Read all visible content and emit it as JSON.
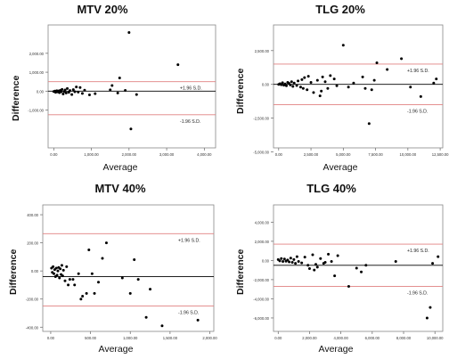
{
  "chart_data": [
    {
      "type": "scatter",
      "title": "MTV 20%",
      "xlabel": "Average",
      "ylabel": "Difference",
      "xlim": [
        -150,
        4300
      ],
      "ylim": [
        -3000,
        3500
      ],
      "xticks": [
        0,
        1000,
        2000,
        3000,
        4000
      ],
      "xtick_labels": [
        "0.00",
        "1,000.00",
        "2,000.00",
        "3,000.00",
        "4,000.00"
      ],
      "yticks": [
        2000,
        1000,
        0,
        -1000
      ],
      "ytick_labels": [
        "2,000.00",
        "1,000.00",
        "0.00",
        "-1,000.00"
      ],
      "reference_lines": [
        {
          "y": 500,
          "label": "+1.96 S.D.",
          "color": "#e08080"
        },
        {
          "y": 0,
          "label": "",
          "color": "#000000"
        },
        {
          "y": -1250,
          "label": "-1.96 S.D.",
          "color": "#e08080"
        }
      ],
      "points": [
        [
          0,
          -20
        ],
        [
          30,
          0
        ],
        [
          50,
          -60
        ],
        [
          80,
          20
        ],
        [
          100,
          -40
        ],
        [
          120,
          10
        ],
        [
          150,
          -80
        ],
        [
          170,
          40
        ],
        [
          200,
          -30
        ],
        [
          220,
          90
        ],
        [
          250,
          -150
        ],
        [
          280,
          -20
        ],
        [
          300,
          60
        ],
        [
          330,
          -100
        ],
        [
          360,
          140
        ],
        [
          400,
          -60
        ],
        [
          430,
          30
        ],
        [
          480,
          -180
        ],
        [
          520,
          80
        ],
        [
          560,
          -30
        ],
        [
          600,
          220
        ],
        [
          650,
          -50
        ],
        [
          700,
          190
        ],
        [
          760,
          -120
        ],
        [
          820,
          50
        ],
        [
          950,
          -200
        ],
        [
          1100,
          -130
        ],
        [
          1500,
          70
        ],
        [
          1550,
          300
        ],
        [
          1700,
          -100
        ],
        [
          1750,
          700
        ],
        [
          1900,
          40
        ],
        [
          2000,
          3100
        ],
        [
          2050,
          -2000
        ],
        [
          2200,
          -180
        ],
        [
          3300,
          1400
        ]
      ]
    },
    {
      "type": "scatter",
      "title": "TLG 20%",
      "xlabel": "Average",
      "ylabel": "Difference",
      "xlim": [
        -400,
        12700
      ],
      "ylim": [
        -4700,
        4400
      ],
      "xticks": [
        0,
        2500,
        5000,
        7500,
        10000,
        12500
      ],
      "xtick_labels": [
        "0.00",
        "2,500.00",
        "5,000.00",
        "7,500.00",
        "10,000.00",
        "12,500.00"
      ],
      "yticks": [
        2500,
        0,
        -2500,
        -5000
      ],
      "ytick_labels": [
        "2,500.00",
        "0.00",
        "-2,500.00",
        "-5,000.00"
      ],
      "reference_lines": [
        {
          "y": 1500,
          "label": "+1.96 S.D.",
          "color": "#e08080"
        },
        {
          "y": 0,
          "label": "",
          "color": "#000000"
        },
        {
          "y": -1500,
          "label": "-1.96 S.D.",
          "color": "#e08080"
        }
      ],
      "points": [
        [
          0,
          0
        ],
        [
          100,
          50
        ],
        [
          200,
          -30
        ],
        [
          300,
          120
        ],
        [
          400,
          -60
        ],
        [
          500,
          30
        ],
        [
          600,
          -100
        ],
        [
          700,
          150
        ],
        [
          800,
          80
        ],
        [
          900,
          -40
        ],
        [
          1000,
          200
        ],
        [
          1100,
          -150
        ],
        [
          1200,
          100
        ],
        [
          1400,
          -80
        ],
        [
          1500,
          250
        ],
        [
          1700,
          -200
        ],
        [
          1800,
          350
        ],
        [
          1900,
          -300
        ],
        [
          2000,
          500
        ],
        [
          2200,
          -400
        ],
        [
          2300,
          600
        ],
        [
          2500,
          150
        ],
        [
          2700,
          -600
        ],
        [
          3000,
          300
        ],
        [
          3200,
          -850
        ],
        [
          3300,
          -500
        ],
        [
          3400,
          550
        ],
        [
          3600,
          200
        ],
        [
          3800,
          -300
        ],
        [
          4000,
          650
        ],
        [
          4300,
          400
        ],
        [
          4500,
          -100
        ],
        [
          5000,
          2900
        ],
        [
          5400,
          -200
        ],
        [
          5800,
          100
        ],
        [
          6500,
          550
        ],
        [
          6700,
          -300
        ],
        [
          7000,
          -2900
        ],
        [
          7200,
          -400
        ],
        [
          7400,
          300
        ],
        [
          7600,
          1600
        ],
        [
          8400,
          1100
        ],
        [
          9500,
          1900
        ],
        [
          10200,
          -200
        ],
        [
          11000,
          -900
        ],
        [
          12000,
          100
        ],
        [
          12200,
          400
        ]
      ]
    },
    {
      "type": "scatter",
      "title": "MTV 40%",
      "xlabel": "Average",
      "ylabel": "Difference",
      "xlim": [
        -100,
        2050
      ],
      "ylim": [
        -430,
        470
      ],
      "xticks": [
        0,
        500,
        1000,
        1500,
        2000
      ],
      "xtick_labels": [
        "0.00",
        "500.00",
        "1,000.00",
        "1,500.00",
        "2,000.00"
      ],
      "yticks": [
        400,
        200,
        0,
        -200,
        -400
      ],
      "ytick_labels": [
        "400.00",
        "200.00",
        "0.00",
        "-200.00",
        "-400.00"
      ],
      "reference_lines": [
        {
          "y": 265,
          "label": "+1.96 S.D.",
          "color": "#e08080"
        },
        {
          "y": -40,
          "label": "",
          "color": "#000000"
        },
        {
          "y": -250,
          "label": "-1.96 S.D.",
          "color": "#e08080"
        }
      ],
      "points": [
        [
          10,
          20
        ],
        [
          20,
          -10
        ],
        [
          30,
          30
        ],
        [
          40,
          -20
        ],
        [
          50,
          10
        ],
        [
          60,
          -40
        ],
        [
          70,
          20
        ],
        [
          80,
          -30
        ],
        [
          90,
          0
        ],
        [
          100,
          25
        ],
        [
          110,
          -50
        ],
        [
          120,
          15
        ],
        [
          130,
          -25
        ],
        [
          140,
          40
        ],
        [
          150,
          -35
        ],
        [
          160,
          5
        ],
        [
          180,
          -70
        ],
        [
          200,
          30
        ],
        [
          220,
          -100
        ],
        [
          240,
          -60
        ],
        [
          280,
          -60
        ],
        [
          300,
          -100
        ],
        [
          350,
          -20
        ],
        [
          380,
          -200
        ],
        [
          400,
          -180
        ],
        [
          450,
          -160
        ],
        [
          480,
          150
        ],
        [
          520,
          -20
        ],
        [
          550,
          -160
        ],
        [
          600,
          -80
        ],
        [
          650,
          90
        ],
        [
          700,
          200
        ],
        [
          900,
          -50
        ],
        [
          1000,
          -160
        ],
        [
          1050,
          80
        ],
        [
          1100,
          -60
        ],
        [
          1200,
          -330
        ],
        [
          1250,
          -130
        ],
        [
          1400,
          -390
        ],
        [
          1850,
          -350
        ]
      ]
    },
    {
      "type": "scatter",
      "title": "TLG 40%",
      "xlabel": "Average",
      "ylabel": "Difference",
      "xlim": [
        -300,
        10500
      ],
      "ylim": [
        -7400,
        5800
      ],
      "xticks": [
        0,
        2000,
        4000,
        6000,
        8000,
        10000
      ],
      "xtick_labels": [
        "0.00",
        "2,000.00",
        "4,000.00",
        "6,000.00",
        "8,000.00",
        "10,000.00"
      ],
      "yticks": [
        4000,
        2000,
        0,
        -2000,
        -4000,
        -6000
      ],
      "ytick_labels": [
        "4,000.00",
        "2,000.00",
        "0.00",
        "-2,000.00",
        "-4,000.00",
        "-6,000.00"
      ],
      "reference_lines": [
        {
          "y": 1700,
          "label": "+1.96 S.D.",
          "color": "#e08080"
        },
        {
          "y": -500,
          "label": "",
          "color": "#000000"
        },
        {
          "y": -2700,
          "label": "-1.96 S.D.",
          "color": "#e08080"
        }
      ],
      "points": [
        [
          0,
          100
        ],
        [
          100,
          -50
        ],
        [
          200,
          200
        ],
        [
          300,
          -100
        ],
        [
          400,
          150
        ],
        [
          500,
          -80
        ],
        [
          600,
          50
        ],
        [
          700,
          -150
        ],
        [
          800,
          250
        ],
        [
          900,
          -200
        ],
        [
          1000,
          100
        ],
        [
          1100,
          -300
        ],
        [
          1200,
          400
        ],
        [
          1300,
          -100
        ],
        [
          1500,
          -250
        ],
        [
          1700,
          350
        ],
        [
          1900,
          -500
        ],
        [
          2000,
          -850
        ],
        [
          2200,
          600
        ],
        [
          2300,
          -1000
        ],
        [
          2400,
          -400
        ],
        [
          2500,
          -700
        ],
        [
          2700,
          200
        ],
        [
          2900,
          -300
        ],
        [
          3000,
          -200
        ],
        [
          3200,
          650
        ],
        [
          3400,
          -100
        ],
        [
          3600,
          -1600
        ],
        [
          3800,
          500
        ],
        [
          4500,
          -2700
        ],
        [
          5000,
          -800
        ],
        [
          5300,
          -1200
        ],
        [
          5600,
          -500
        ],
        [
          7500,
          -100
        ],
        [
          9500,
          -6000
        ],
        [
          9700,
          -4900
        ],
        [
          9850,
          -300
        ],
        [
          10200,
          400
        ]
      ]
    }
  ]
}
